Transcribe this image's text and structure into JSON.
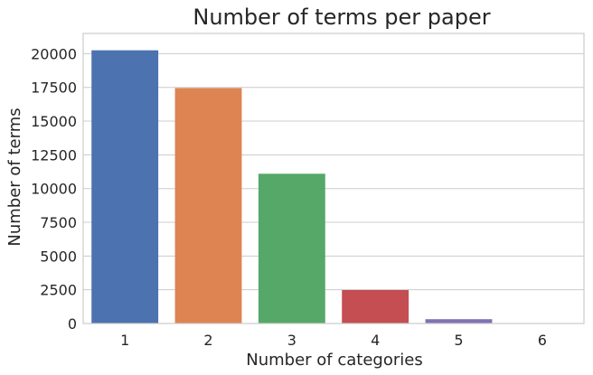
{
  "chart_data": {
    "type": "bar",
    "title": "Number of terms per paper",
    "xlabel": "Number of categories",
    "ylabel": "Number of terms",
    "categories": [
      "1",
      "2",
      "3",
      "4",
      "5",
      "6"
    ],
    "values": [
      20250,
      17450,
      11100,
      2480,
      320,
      30
    ],
    "colors": [
      "#4c72b0",
      "#dd8452",
      "#55a868",
      "#c44e52",
      "#8172b3",
      "#937860"
    ],
    "ylim": [
      0,
      21500
    ],
    "yticks": [
      0,
      2500,
      5000,
      7500,
      10000,
      12500,
      15000,
      17500,
      20000
    ],
    "grid": true,
    "legend": "none"
  }
}
